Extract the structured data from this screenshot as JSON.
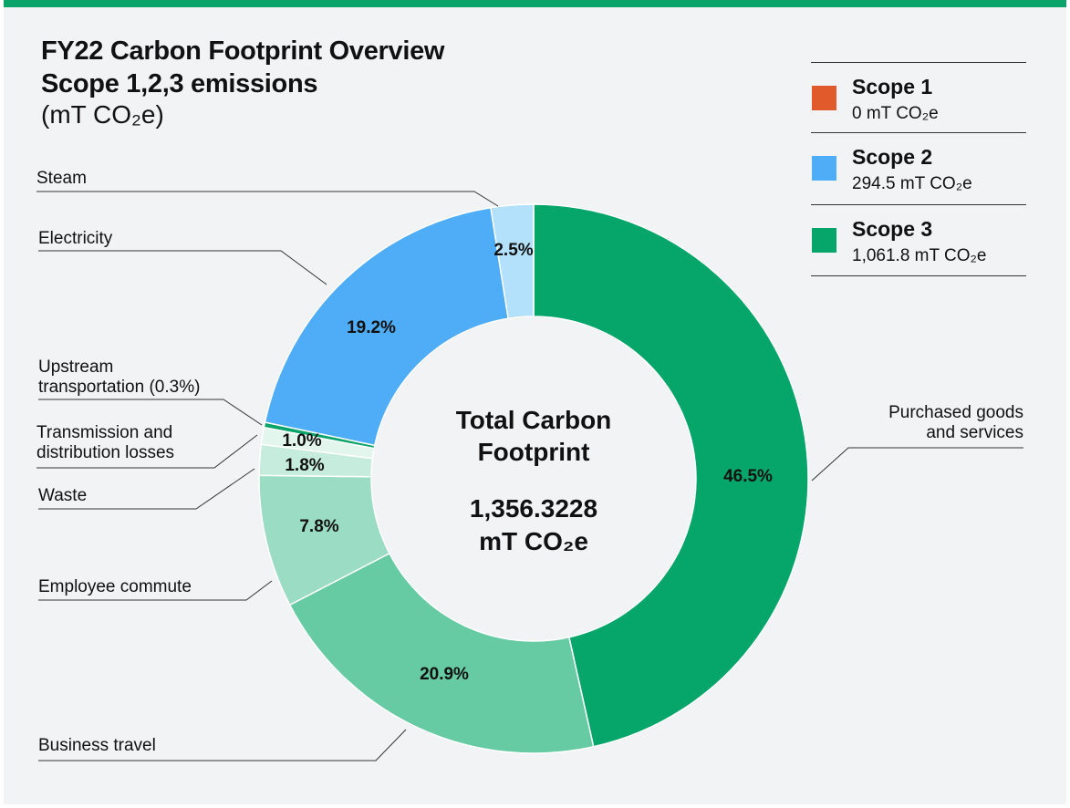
{
  "title_line1": "FY22 Carbon Footprint Overview",
  "title_line2": "Scope 1,2,3 emissions",
  "unit_label": "(mT CO₂e)",
  "legend": [
    {
      "name": "Scope 1",
      "value": "0 mT CO₂e",
      "color": "#e05a2b"
    },
    {
      "name": "Scope 2",
      "value": "294.5 mT CO₂e",
      "color": "#4fadf7"
    },
    {
      "name": "Scope 3",
      "value": "1,061.8 mT CO₂e",
      "color": "#06a66b"
    }
  ],
  "center": {
    "line1": "Total Carbon",
    "line2": "Footprint",
    "value": "1,356.3228",
    "unit": "mT CO₂e"
  },
  "chart_data": {
    "type": "pie",
    "title": "FY22 Carbon Footprint Overview Scope 1,2,3 emissions (mT CO₂e)",
    "donut": true,
    "categories": [
      "Purchased goods and services",
      "Business travel",
      "Employee commute",
      "Waste",
      "Transmission and distribution losses",
      "Upstream transportation (0.3%)",
      "Electricity",
      "Steam"
    ],
    "values": [
      46.5,
      20.9,
      7.8,
      1.8,
      1.0,
      0.3,
      19.2,
      2.5
    ],
    "value_labels": [
      "46.5%",
      "20.9%",
      "7.8%",
      "1.8%",
      "1.0%",
      "",
      "19.2%",
      "2.5%"
    ],
    "colors": [
      "#06a66b",
      "#66cba3",
      "#9bdcc4",
      "#c5ecdc",
      "#e3f6ee",
      "#0aa36a",
      "#4fadf7",
      "#b3e1fb"
    ],
    "callout_labels": [
      [
        "Purchased goods",
        "and services"
      ],
      [
        "Business travel"
      ],
      [
        "Employee commute"
      ],
      [
        "Waste"
      ],
      [
        "Transmission and",
        "distribution losses"
      ],
      [
        "Upstream",
        "transportation (0.3%)"
      ],
      [
        "Electricity"
      ],
      [
        "Steam"
      ]
    ]
  }
}
